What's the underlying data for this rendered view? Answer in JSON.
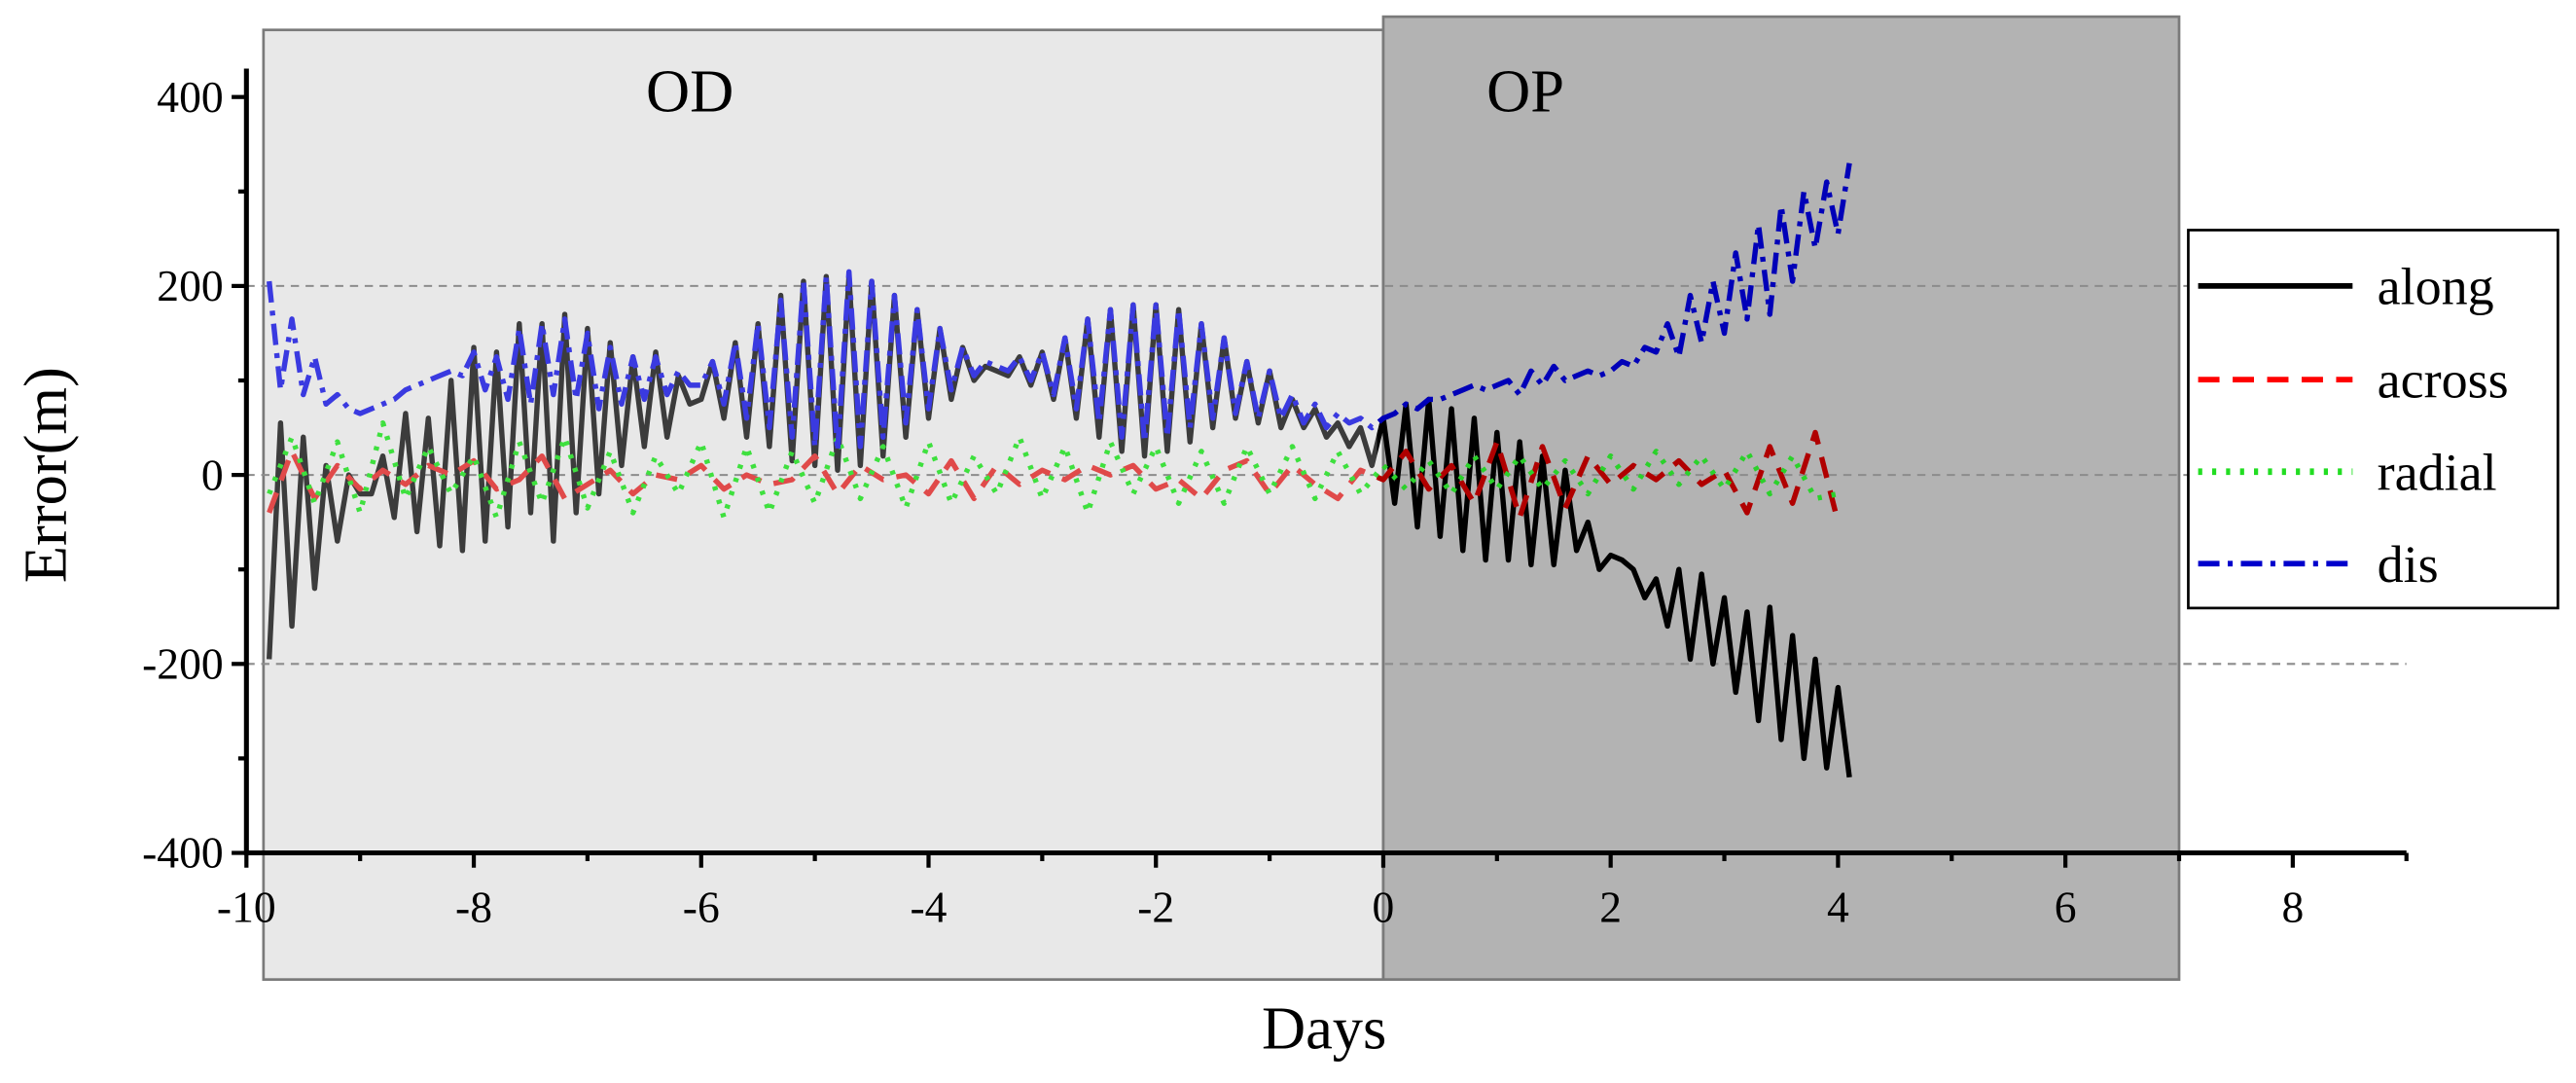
{
  "chart_data": {
    "type": "line",
    "title": "",
    "xlabel": "Days",
    "ylabel": "Error(m)",
    "xlim": [
      -10,
      9
    ],
    "ylim": [
      -400,
      430
    ],
    "x_ticks": [
      -10,
      -8,
      -6,
      -4,
      -2,
      0,
      2,
      4,
      6,
      8
    ],
    "x_tick_labels": [
      "-10",
      "-8",
      "-6",
      "-4",
      "-2",
      "0",
      "2",
      "4",
      "6",
      "8"
    ],
    "y_ticks": [
      400,
      200,
      0,
      -200,
      -400
    ],
    "y_tick_labels": [
      "400",
      "200",
      "0",
      "-200",
      "-400"
    ],
    "grid_y": [
      200,
      0,
      -200
    ],
    "legend_position": "right",
    "regions": [
      {
        "label": "OD",
        "x_range": [
          -9.85,
          0
        ],
        "y_range": [
          -534,
          471
        ],
        "fill": "#e8e8e8",
        "label_x": -6.1,
        "label_y": 385
      },
      {
        "label": "OP",
        "x_range": [
          0,
          7
        ],
        "y_range": [
          -534,
          485
        ],
        "fill": "#b3b3b3",
        "label_x": 1.25,
        "label_y": 385
      }
    ],
    "series": [
      {
        "name": "along",
        "line_style": "solid",
        "color_od": "#3c3c3c",
        "color_op": "#000000",
        "legend_color": "#000000",
        "x0": -9.8,
        "dx": 0.1,
        "y": [
          -195,
          55,
          -160,
          40,
          -120,
          10,
          -70,
          0,
          -20,
          -20,
          20,
          -45,
          65,
          -60,
          60,
          -75,
          100,
          -80,
          135,
          -70,
          130,
          -55,
          160,
          -40,
          160,
          -70,
          170,
          -40,
          155,
          -20,
          140,
          10,
          125,
          30,
          130,
          40,
          105,
          75,
          80,
          120,
          60,
          140,
          40,
          160,
          30,
          190,
          15,
          205,
          10,
          210,
          5,
          210,
          10,
          205,
          20,
          190,
          40,
          175,
          60,
          155,
          80,
          135,
          100,
          115,
          110,
          105,
          125,
          95,
          130,
          80,
          145,
          60,
          165,
          40,
          175,
          25,
          180,
          20,
          180,
          25,
          175,
          35,
          160,
          50,
          145,
          60,
          120,
          55,
          110,
          50,
          80,
          50,
          70,
          40,
          55,
          30,
          50,
          10,
          60,
          -30,
          75,
          -55,
          80,
          -65,
          70,
          -80,
          60,
          -90,
          45,
          -90,
          35,
          -95,
          20,
          -95,
          5,
          -80,
          -50,
          -100,
          -85,
          -90,
          -100,
          -130,
          -110,
          -160,
          -100,
          -195,
          -105,
          -200,
          -130,
          -230,
          -145,
          -260,
          -140,
          -280,
          -170,
          -300,
          -195,
          -310,
          -225,
          -320
        ]
      },
      {
        "name": "across",
        "line_style": "dash",
        "color_od": "#e04a4a",
        "color_op": "#b00000",
        "legend_color": "#ff0000",
        "x0": -9.8,
        "dx": 0.2,
        "y": [
          -40,
          25,
          -25,
          10,
          -15,
          5,
          -10,
          10,
          0,
          15,
          -15,
          -5,
          20,
          -25,
          -10,
          5,
          -20,
          0,
          -5,
          10,
          -15,
          0,
          -10,
          -5,
          20,
          -20,
          10,
          -5,
          0,
          -20,
          15,
          -25,
          10,
          -10,
          5,
          -5,
          10,
          0,
          10,
          -15,
          -5,
          -25,
          5,
          15,
          -20,
          10,
          -10,
          -25,
          5,
          -5,
          25,
          -15,
          10,
          -30,
          35,
          -45,
          30,
          -35,
          20,
          -10,
          10,
          -5,
          15,
          -10,
          5,
          -40,
          30,
          -30,
          45,
          -50
        ]
      },
      {
        "name": "radial",
        "line_style": "dot",
        "color_od": "#3ee03e",
        "color_op": "#2bd12b",
        "legend_color": "#22dd22",
        "x0": -9.8,
        "dx": 0.2,
        "y": [
          -20,
          40,
          -30,
          35,
          -40,
          55,
          -25,
          30,
          -20,
          20,
          -45,
          35,
          -30,
          40,
          -35,
          25,
          -40,
          20,
          -20,
          35,
          -45,
          30,
          -40,
          25,
          -30,
          40,
          -25,
          30,
          -35,
          35,
          -30,
          20,
          -20,
          40,
          -25,
          30,
          -40,
          35,
          -20,
          30,
          -30,
          25,
          -30,
          30,
          -20,
          30,
          -25,
          25,
          -20,
          10,
          -15,
          15,
          -20,
          20,
          -15,
          20,
          -15,
          15,
          -20,
          20,
          -15,
          25,
          -10,
          20,
          -15,
          25,
          -20,
          20,
          -25,
          -20
        ]
      },
      {
        "name": "dis",
        "line_style": "dash-dot",
        "color_od": "#3a3ae0",
        "color_op": "#0000b8",
        "legend_color": "#0000cc",
        "x0": -9.8,
        "dx": 0.1,
        "y": [
          205,
          90,
          165,
          85,
          125,
          75,
          85,
          70,
          65,
          70,
          75,
          80,
          90,
          95,
          100,
          105,
          110,
          105,
          130,
          90,
          125,
          80,
          155,
          75,
          160,
          85,
          165,
          80,
          150,
          70,
          135,
          75,
          125,
          80,
          125,
          85,
          110,
          95,
          95,
          120,
          75,
          140,
          60,
          160,
          50,
          185,
          40,
          205,
          30,
          210,
          25,
          215,
          30,
          205,
          40,
          190,
          55,
          175,
          70,
          155,
          90,
          135,
          105,
          120,
          115,
          110,
          125,
          100,
          130,
          85,
          145,
          70,
          165,
          55,
          175,
          40,
          180,
          35,
          180,
          40,
          175,
          50,
          160,
          60,
          145,
          65,
          120,
          60,
          110,
          60,
          85,
          55,
          75,
          50,
          65,
          55,
          60,
          50,
          60,
          65,
          75,
          70,
          80,
          80,
          85,
          90,
          95,
          90,
          95,
          100,
          85,
          110,
          95,
          115,
          100,
          105,
          110,
          105,
          110,
          120,
          115,
          135,
          130,
          160,
          125,
          190,
          140,
          205,
          150,
          235,
          165,
          265,
          170,
          285,
          205,
          300,
          240,
          310,
          255,
          330
        ]
      }
    ]
  }
}
